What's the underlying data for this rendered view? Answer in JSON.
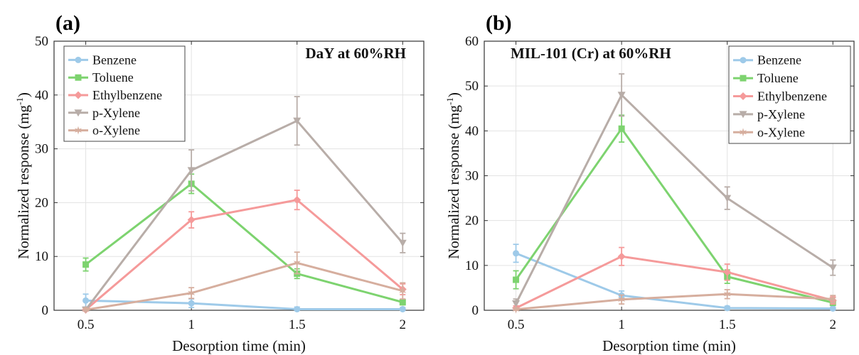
{
  "chart_data": [
    {
      "panel_label": "(a)",
      "type": "line",
      "annotation": "DaY at 60%RH",
      "xlabel": "Desorption time (min)",
      "ylabel_main": "Normalized response (mg",
      "ylabel_sup": "-1",
      "ylabel_close": ")",
      "x": [
        0.5,
        1,
        1.5,
        2
      ],
      "xticks": [
        "0.5",
        "1",
        "1.5",
        "2"
      ],
      "xlim": [
        0.35,
        2.1
      ],
      "ylim": [
        0,
        50
      ],
      "yticks": [
        "0",
        "10",
        "20",
        "30",
        "40",
        "50"
      ],
      "grid": true,
      "legend_position": "top-left",
      "series": [
        {
          "name": "Benzene",
          "color": "#9ecae9",
          "marker": "circle",
          "values": [
            1.8,
            1.3,
            0.2,
            0.2
          ],
          "errors": [
            1.2,
            0.8,
            0.4,
            0.3
          ]
        },
        {
          "name": "Toluene",
          "color": "#7dd36f",
          "marker": "square",
          "values": [
            8.5,
            23.5,
            6.8,
            1.5
          ],
          "errors": [
            1.2,
            1.8,
            0.9,
            0.5
          ]
        },
        {
          "name": "Ethylbenzene",
          "color": "#f59a9a",
          "marker": "diamond",
          "values": [
            0.1,
            16.8,
            20.5,
            3.9
          ],
          "errors": [
            0.3,
            1.5,
            1.8,
            1.0
          ]
        },
        {
          "name": "p-Xylene",
          "color": "#b8ada8",
          "marker": "triangle-down",
          "values": [
            0.1,
            26.0,
            35.2,
            12.5
          ],
          "errors": [
            0.3,
            3.8,
            4.5,
            1.8
          ]
        },
        {
          "name": "o-Xylene",
          "color": "#d6ae9e",
          "marker": "star",
          "values": [
            0.1,
            3.2,
            8.8,
            3.6
          ],
          "errors": [
            0.3,
            1.0,
            2.0,
            1.5
          ]
        }
      ]
    },
    {
      "panel_label": "(b)",
      "type": "line",
      "annotation": "MIL-101 (Cr) at 60%RH",
      "xlabel": "Desorption time (min)",
      "ylabel_main": "Normalized response (mg",
      "ylabel_sup": "-1",
      "ylabel_close": ")",
      "x": [
        0.5,
        1,
        1.5,
        2
      ],
      "xticks": [
        "0.5",
        "1",
        "1.5",
        "2"
      ],
      "xlim": [
        0.35,
        2.1
      ],
      "ylim": [
        0,
        60
      ],
      "yticks": [
        "0",
        "10",
        "20",
        "30",
        "40",
        "50",
        "60"
      ],
      "grid": true,
      "legend_position": "top-right",
      "series": [
        {
          "name": "Benzene",
          "color": "#9ecae9",
          "marker": "circle",
          "values": [
            12.7,
            3.3,
            0.5,
            0.4
          ],
          "errors": [
            2.0,
            1.0,
            0.4,
            0.3
          ]
        },
        {
          "name": "Toluene",
          "color": "#7dd36f",
          "marker": "square",
          "values": [
            6.8,
            40.5,
            7.5,
            1.7
          ],
          "errors": [
            2.0,
            3.0,
            1.5,
            0.6
          ]
        },
        {
          "name": "Ethylbenzene",
          "color": "#f59a9a",
          "marker": "diamond",
          "values": [
            0.5,
            12.0,
            8.5,
            2.2
          ],
          "errors": [
            0.5,
            2.0,
            1.8,
            0.8
          ]
        },
        {
          "name": "p-Xylene",
          "color": "#b8ada8",
          "marker": "triangle-down",
          "values": [
            1.5,
            48.0,
            25.0,
            9.5
          ],
          "errors": [
            1.0,
            4.7,
            2.5,
            1.7
          ]
        },
        {
          "name": "o-Xylene",
          "color": "#d6ae9e",
          "marker": "star",
          "values": [
            0.2,
            2.4,
            3.6,
            2.5
          ],
          "errors": [
            0.3,
            1.0,
            1.0,
            0.8
          ]
        }
      ]
    }
  ]
}
